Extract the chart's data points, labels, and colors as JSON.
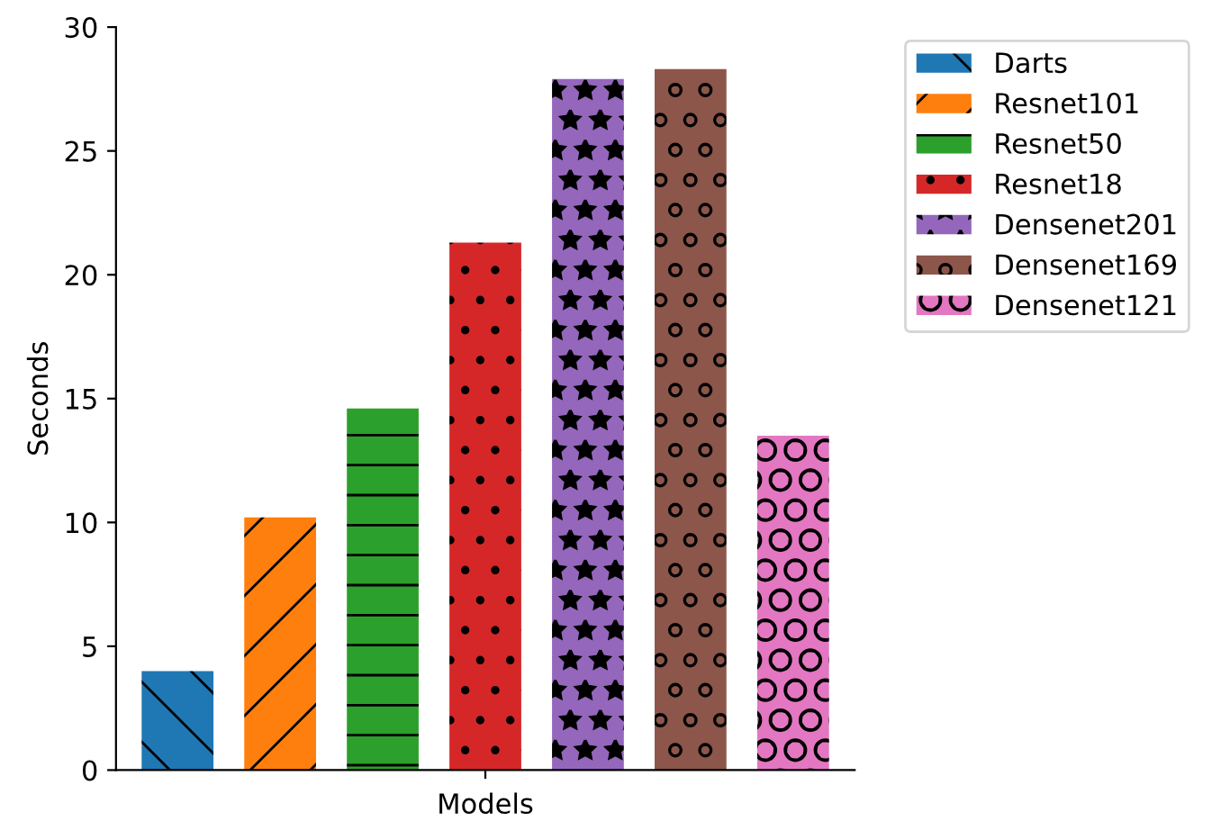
{
  "chart_data": {
    "type": "bar",
    "xlabel": "Models",
    "ylabel": "Seconds",
    "categories": [
      null,
      null,
      null,
      null,
      null,
      null,
      null
    ],
    "series": [
      {
        "name": "Darts",
        "color": "#1f77b4",
        "values": [
          4.0,
          null,
          null,
          null,
          null,
          null,
          null
        ]
      },
      {
        "name": "Resnet101",
        "color": "#ff7f0e",
        "values": [
          null,
          10.2,
          null,
          null,
          null,
          null,
          null
        ]
      },
      {
        "name": "Resnet50",
        "color": "#2ca02c",
        "values": [
          null,
          null,
          14.6,
          null,
          null,
          null,
          null
        ]
      },
      {
        "name": "Resnet18",
        "color": "#d62728",
        "values": [
          null,
          null,
          null,
          21.3,
          null,
          null,
          null
        ]
      },
      {
        "name": "Densenet201",
        "color": "#9467bd",
        "values": [
          null,
          null,
          null,
          null,
          27.9,
          null,
          null
        ]
      },
      {
        "name": "Densenet169",
        "color": "#8c564b",
        "values": [
          null,
          null,
          null,
          null,
          null,
          28.3,
          null
        ]
      },
      {
        "name": "Densenet121",
        "color": "#e377c2",
        "values": [
          null,
          null,
          null,
          null,
          null,
          null,
          13.5
        ]
      }
    ],
    "ylim": [
      0,
      30
    ],
    "yticks": [
      0,
      5,
      10,
      15,
      20,
      25,
      30
    ],
    "grid": false,
    "legend": "top right"
  }
}
